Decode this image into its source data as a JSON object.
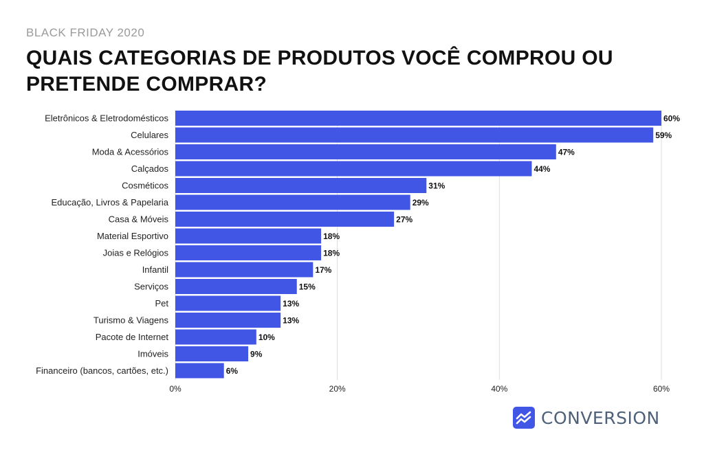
{
  "header": {
    "subtitle": "BLACK FRIDAY 2020",
    "title": "QUAIS CATEGORIAS DE PRODUTOS VOCÊ COMPROU OU PRETENDE COMPRAR?"
  },
  "colors": {
    "bar": "#4256e6",
    "grid": "#dddddd",
    "logo": "#4256e6"
  },
  "chart_data": {
    "type": "bar",
    "orientation": "horizontal",
    "categories": [
      "Eletrônicos & Eletrodomésticos",
      "Celulares",
      "Moda & Acessórios",
      "Calçados",
      "Cosméticos",
      "Educação, Livros & Papelaria",
      "Casa & Móveis",
      "Material Esportivo",
      "Joias e Relógios",
      "Infantil",
      "Serviços",
      "Pet",
      "Turismo & Viagens",
      "Pacote de Internet",
      "Imóveis",
      "Financeiro (bancos, cartões, etc.)"
    ],
    "values": [
      60,
      59,
      47,
      44,
      31,
      29,
      27,
      18,
      18,
      17,
      15,
      13,
      13,
      10,
      9,
      6
    ],
    "value_labels": [
      "60%",
      "59%",
      "47%",
      "44%",
      "31%",
      "29%",
      "27%",
      "18%",
      "18%",
      "17%",
      "15%",
      "13%",
      "13%",
      "10%",
      "9%",
      "6%"
    ],
    "xlim": [
      0,
      60
    ],
    "xticks": [
      0,
      20,
      40,
      60
    ],
    "xtick_labels": [
      "0%",
      "20%",
      "40%",
      "60%"
    ],
    "grid": true,
    "legend": "none"
  },
  "logo": {
    "icon": "trend-chart-icon",
    "text": "CONVERSION"
  }
}
